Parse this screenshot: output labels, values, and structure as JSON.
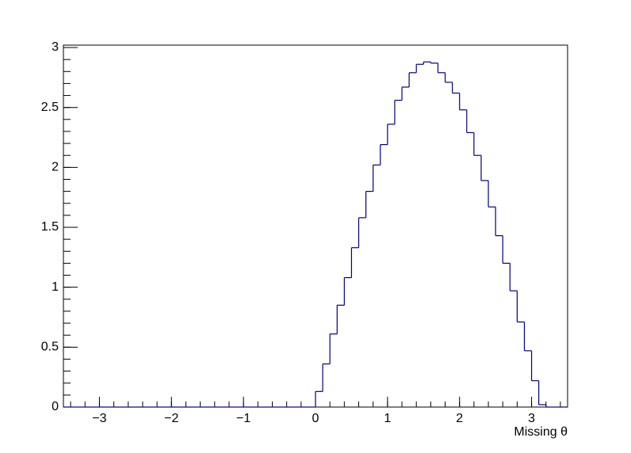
{
  "chart_data": {
    "type": "histogram",
    "x_label": "Missing θ",
    "color": "#000080",
    "bins": [
      -3.5,
      -3.4,
      -3.3,
      -3.2,
      -3.1,
      -3.0,
      -2.9,
      -2.8,
      -2.7,
      -2.6,
      -2.5,
      -2.4,
      -2.3,
      -2.2,
      -2.1,
      -2.0,
      -1.9,
      -1.8,
      -1.7,
      -1.6,
      -1.5,
      -1.4,
      -1.3,
      -1.2,
      -1.1,
      -1.0,
      -0.9,
      -0.8,
      -0.7,
      -0.6,
      -0.5,
      -0.4,
      -0.3,
      -0.2,
      -0.1,
      0.0,
      0.1,
      0.2,
      0.3,
      0.4,
      0.5,
      0.6,
      0.7,
      0.8,
      0.9,
      1.0,
      1.1,
      1.2,
      1.3,
      1.4,
      1.5,
      1.6,
      1.7,
      1.8,
      1.9,
      2.0,
      2.1,
      2.2,
      2.3,
      2.4,
      2.5,
      2.6,
      2.7,
      2.8,
      2.9,
      3.0,
      3.1,
      3.2,
      3.3,
      3.4,
      3.5
    ],
    "values": [
      0,
      0,
      0,
      0,
      0,
      0,
      0,
      0,
      0,
      0,
      0,
      0,
      0,
      0,
      0,
      0,
      0,
      0,
      0,
      0,
      0,
      0,
      0,
      0,
      0,
      0,
      0,
      0,
      0,
      0,
      0,
      0,
      0,
      0,
      0,
      0.13,
      0.36,
      0.61,
      0.85,
      1.08,
      1.33,
      1.58,
      1.8,
      2.02,
      2.19,
      2.36,
      2.56,
      2.67,
      2.79,
      2.86,
      2.88,
      2.87,
      2.79,
      2.71,
      2.62,
      2.48,
      2.29,
      2.1,
      1.89,
      1.67,
      1.43,
      1.2,
      0.97,
      0.71,
      0.47,
      0.22,
      0.02,
      0,
      0,
      0
    ],
    "xlim": [
      -3.5,
      3.5
    ],
    "ylim": [
      0,
      3.02
    ],
    "xticks": [
      {
        "value": -3,
        "label": "−3"
      },
      {
        "value": -2,
        "label": "−2"
      },
      {
        "value": -1,
        "label": "−1"
      },
      0,
      1,
      2,
      3
    ],
    "yticks": [
      0,
      0.5,
      1,
      1.5,
      2,
      2.5,
      3
    ]
  }
}
